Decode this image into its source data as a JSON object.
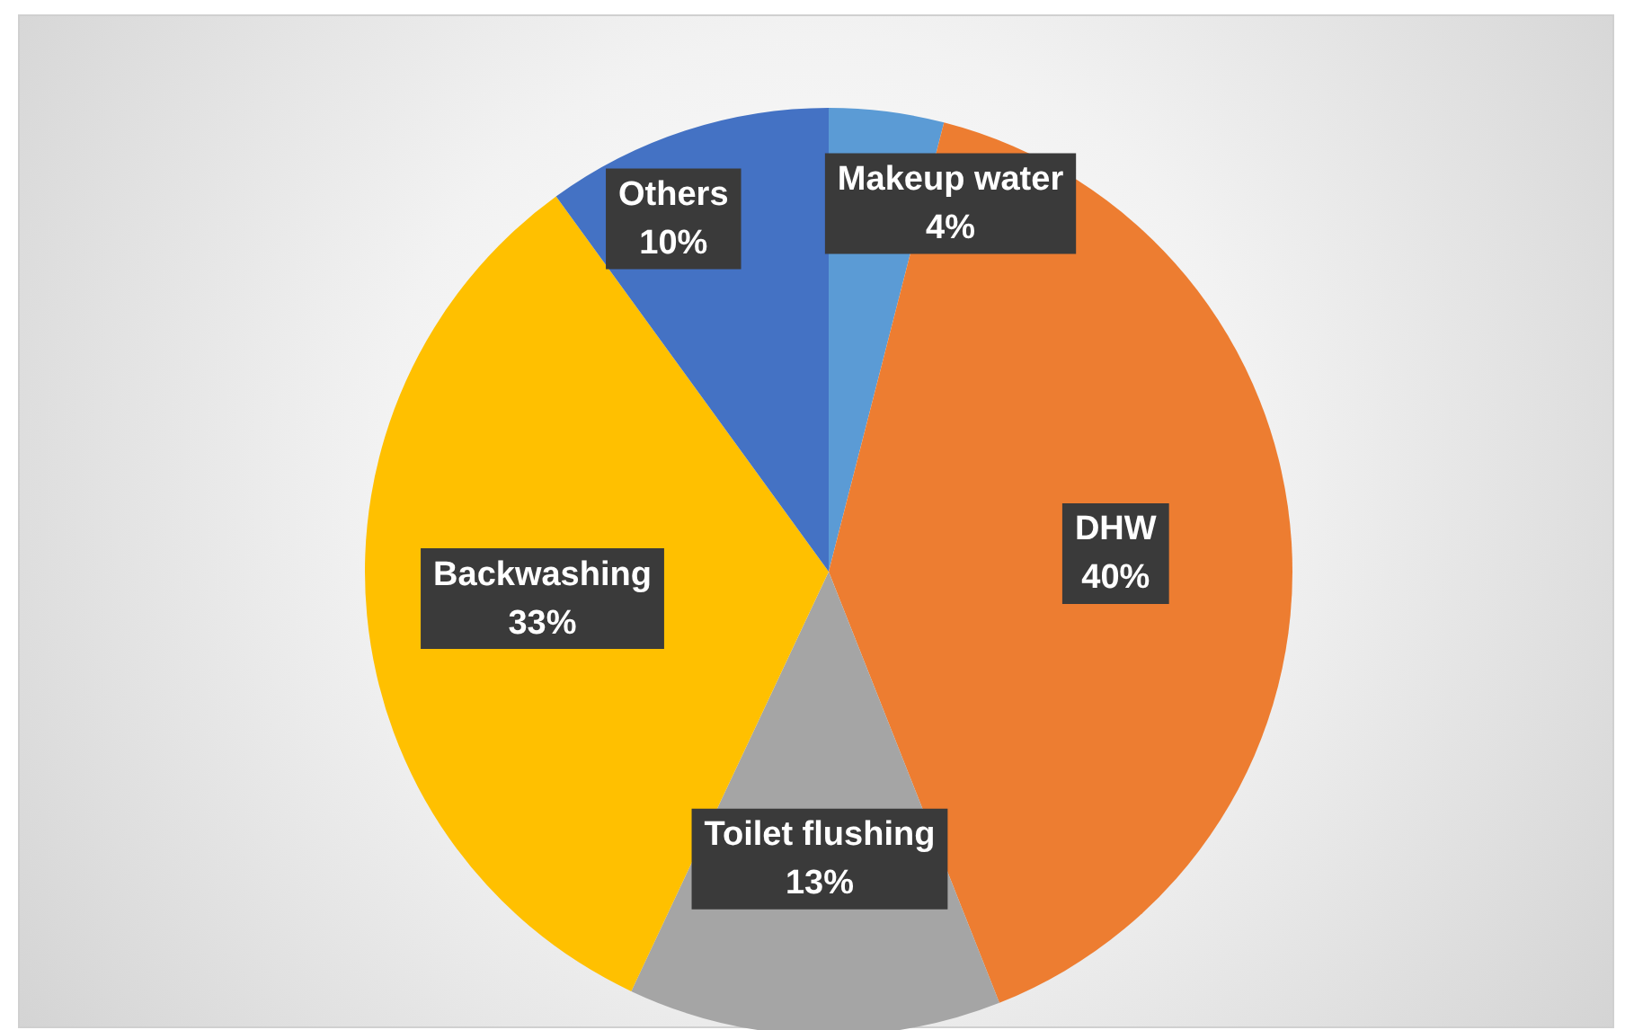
{
  "chart_data": {
    "type": "pie",
    "categories": [
      "Makeup water",
      "DHW",
      "Toilet flushing",
      "Backwashing",
      "Others"
    ],
    "values": [
      4,
      40,
      13,
      33,
      10
    ],
    "value_labels": [
      "4%",
      "40%",
      "13%",
      "33%",
      "10%"
    ],
    "colors": [
      "#5b9bd5",
      "#ed7d31",
      "#a5a5a5",
      "#ffc000",
      "#4472c4"
    ],
    "legend": false
  }
}
